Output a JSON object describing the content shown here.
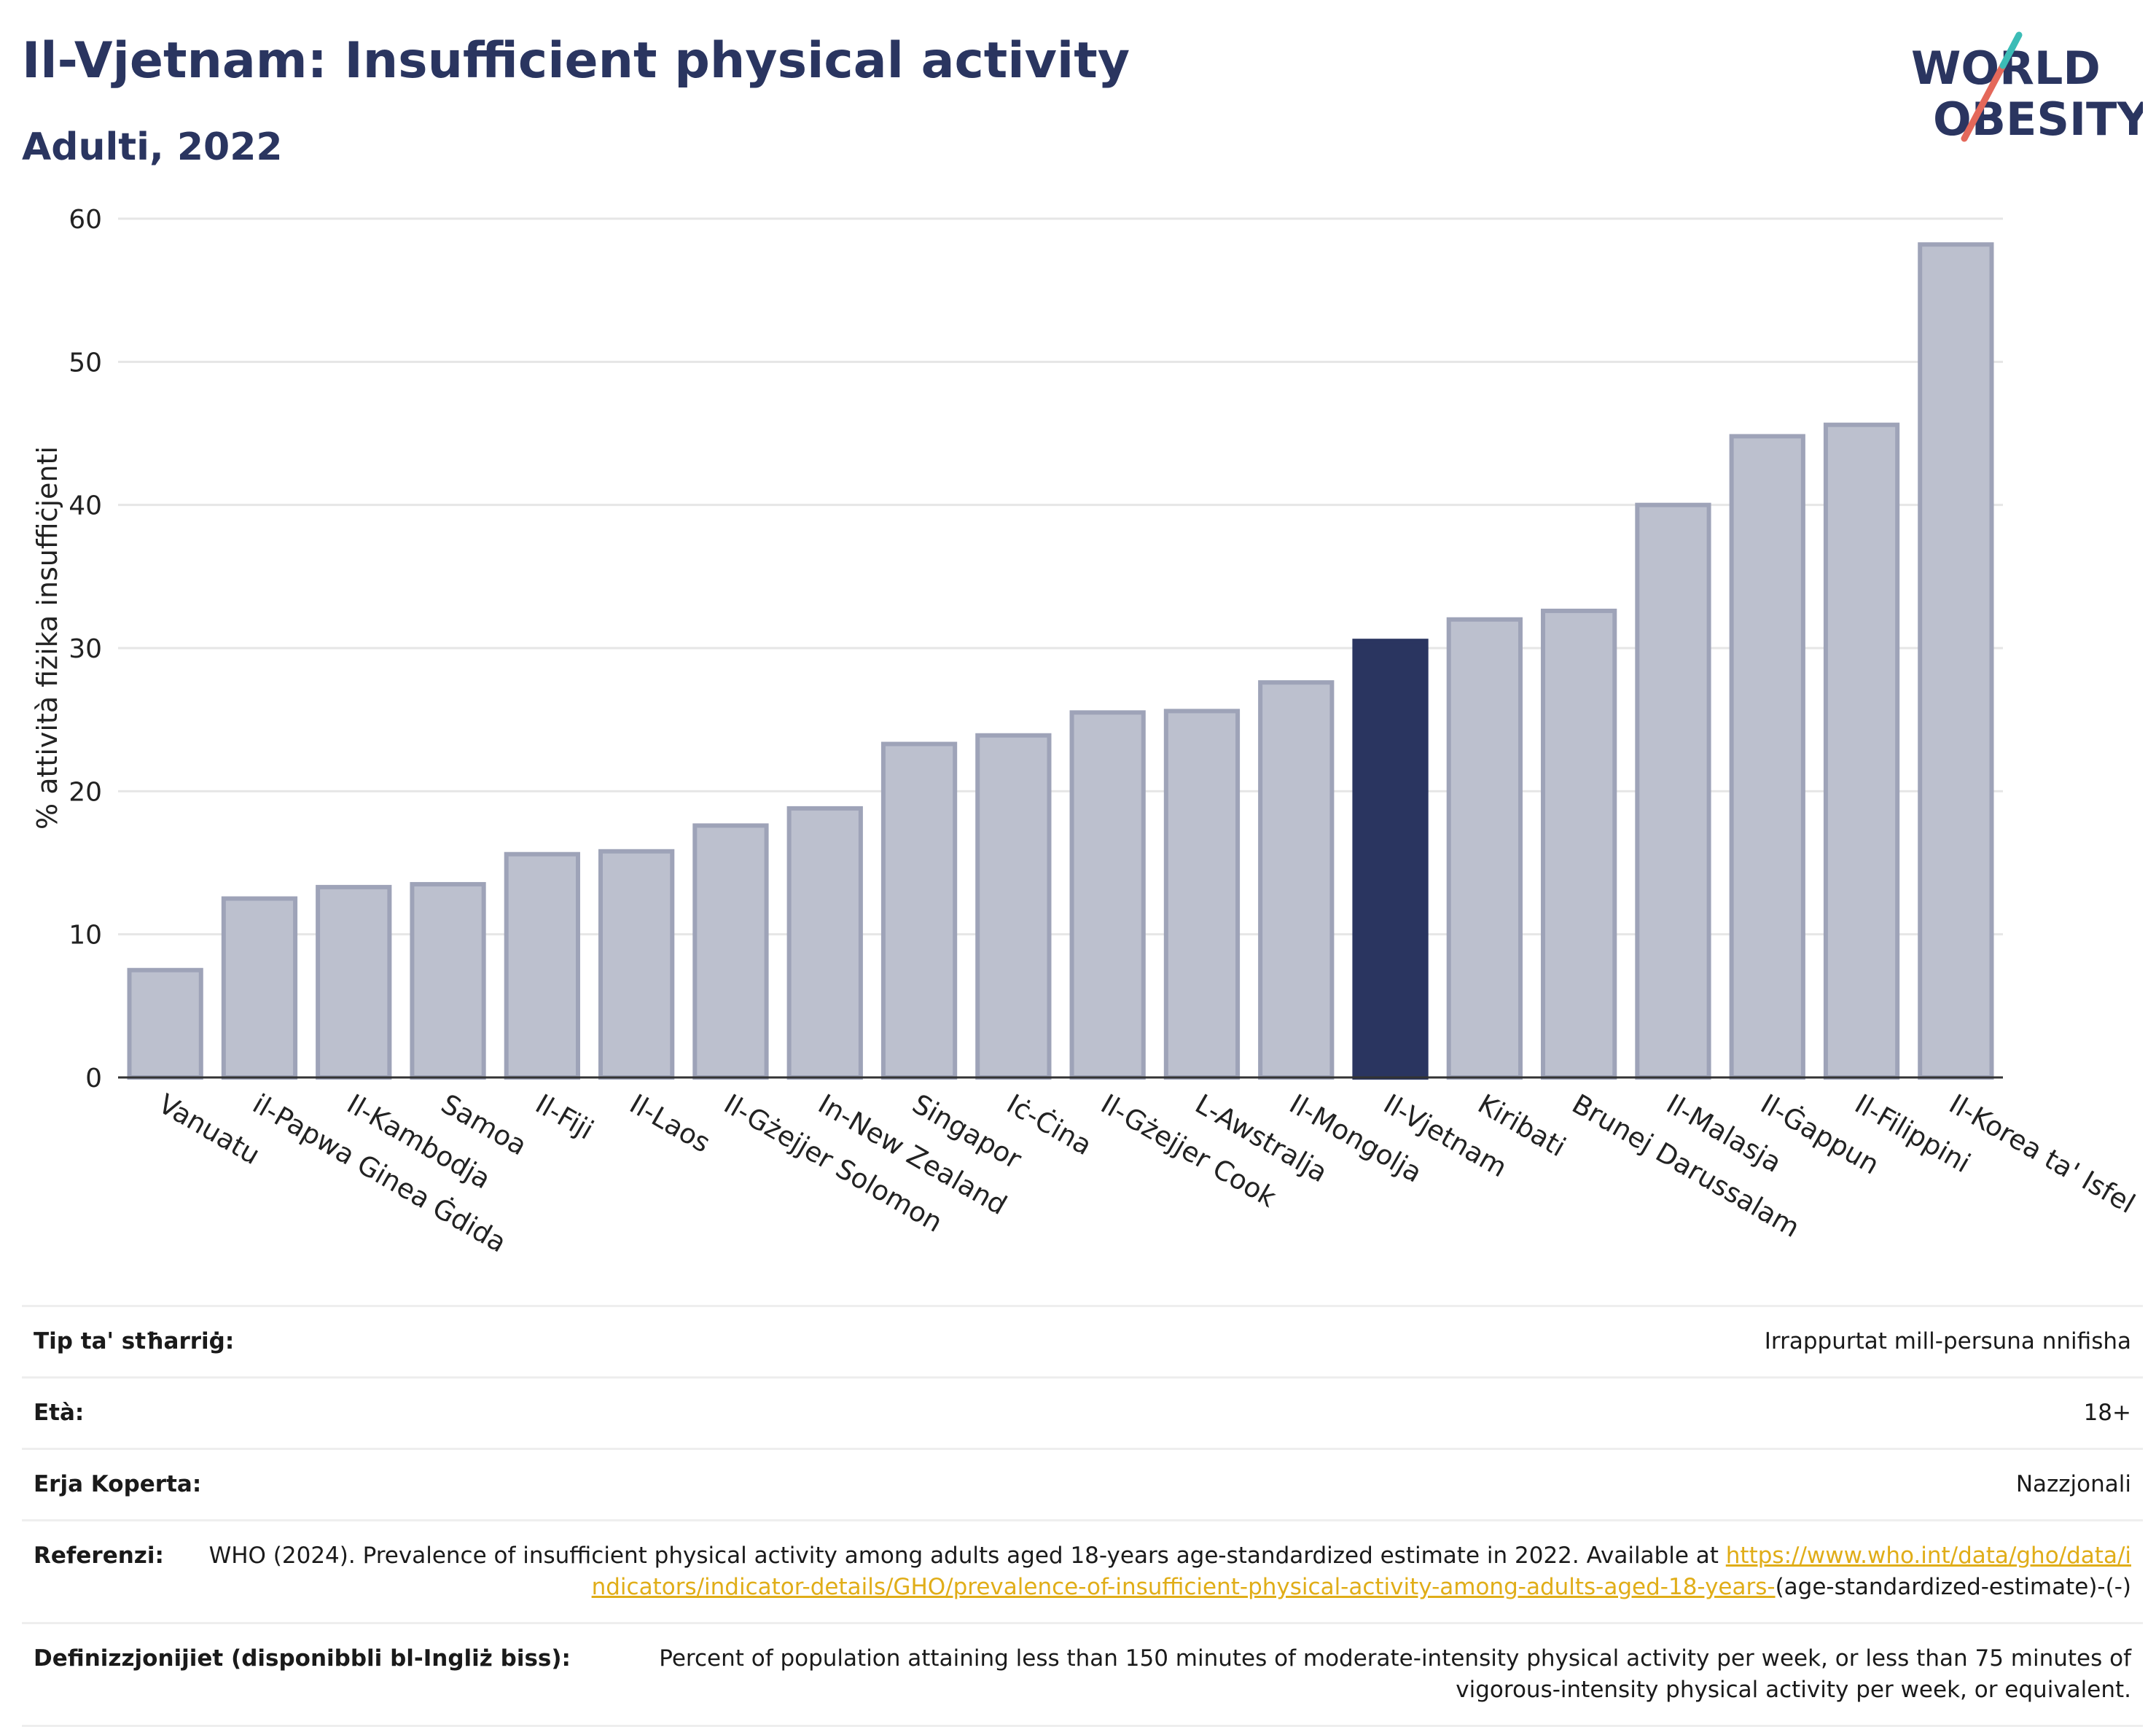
{
  "header": {
    "title": "Il-Vjetnam: Insufficient physical activity",
    "subtitle": "Adulti, 2022"
  },
  "logo": {
    "line1": "WORLD",
    "line2": "OBESITY"
  },
  "colors": {
    "highlight": "#2a3560",
    "bar": "#bcc0ce",
    "bar_border": "#9ea3b8",
    "accent": "#e0ad18"
  },
  "chart_data": {
    "type": "bar",
    "ylabel": "% attività fiżika insuffiċjenti",
    "ylim": [
      0,
      60
    ],
    "yticks": [
      0,
      10,
      20,
      30,
      40,
      50,
      60
    ],
    "grid": true,
    "highlight": "Il-Vjetnam",
    "categories": [
      "Vanuatu",
      "il-Papwa Ginea Ġdida",
      "Il-Kambodja",
      "Samoa",
      "Il-Fiji",
      "Il-Laos",
      "Il-Gżejjer Solomon",
      "In-New Zealand",
      "Singapor",
      "Iċ-Ċina",
      "Il-Gżejjer Cook",
      "L-Awstralja",
      "Il-Mongolja",
      "Il-Vjetnam",
      "Kiribati",
      "Brunej Darussalam",
      "Il-Malasja",
      "Il-Ġappun",
      "Il-Filippini",
      "Il-Korea ta' Isfel"
    ],
    "values": [
      7.5,
      12.5,
      13.3,
      13.5,
      15.6,
      15.8,
      17.6,
      18.8,
      23.3,
      23.9,
      25.5,
      25.6,
      27.6,
      30.5,
      32.0,
      32.6,
      40.0,
      44.8,
      45.6,
      58.2
    ]
  },
  "info": {
    "survey_type": {
      "label": "Tip ta' stħarriġ:",
      "value": "Irrappurtat mill-persuna nnifisha"
    },
    "age": {
      "label": "Età:",
      "value": "18+"
    },
    "area": {
      "label": "Erja Koperta:",
      "value": "Nazzjonali"
    },
    "references": {
      "label": "Referenzi:",
      "text": "WHO (2024). Prevalence of insufficient physical activity among adults aged 18-years age-standardized estimate in 2022. Available at",
      "link": "https://www.who.int/data/gho/data/indicators/indicator-details/GHO/prevalence-of-insufficient-physical-activity-among-adults-aged-18-years-",
      "suffix": "(age-standardized-estimate)-(-)"
    },
    "definitions": {
      "label": "Definizzjonijiet (disponibbli bl-Ingliż biss):",
      "value": "Percent of population attaining less than 150 minutes of moderate-intensity physical activity per week, or less than 75 minutes of vigorous-intensity physical activity per week, or equivalent."
    }
  }
}
